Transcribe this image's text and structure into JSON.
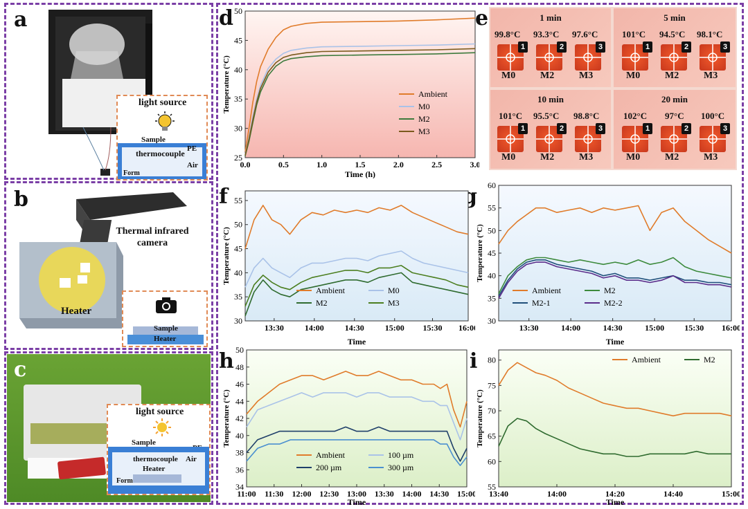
{
  "panels": {
    "a": {
      "label": "a",
      "inset": {
        "light": "light source",
        "sample": "Sample",
        "thermocouple": "thermocouple",
        "pe": "PE",
        "air": "Air",
        "form": "Form"
      }
    },
    "b": {
      "label": "b",
      "camera": "Thermal infrared camera",
      "heater": "Heater",
      "inset": {
        "sample": "Sample",
        "heater": "Heater"
      }
    },
    "c": {
      "label": "c",
      "inset": {
        "light": "light source",
        "sample": "Sample",
        "pe": "PE",
        "thermocouple": "thermocouple",
        "air": "Air",
        "heater": "Heater",
        "form": "Form"
      }
    },
    "d": {
      "label": "d"
    },
    "e": {
      "label": "e"
    },
    "f": {
      "label": "f"
    },
    "g": {
      "label": "g"
    },
    "h": {
      "label": "h"
    },
    "i": {
      "label": "i"
    }
  },
  "thermal": {
    "cells": [
      {
        "title": "1 min",
        "temps": [
          "99.8°C",
          "93.3°C",
          "97.6°C"
        ],
        "samples": [
          "M0",
          "M2",
          "M3"
        ]
      },
      {
        "title": "5 min",
        "temps": [
          "101°C",
          "94.5°C",
          "98.1°C"
        ],
        "samples": [
          "M0",
          "M2",
          "M3"
        ]
      },
      {
        "title": "10 min",
        "temps": [
          "101°C",
          "95.5°C",
          "98.8°C"
        ],
        "samples": [
          "M0",
          "M2",
          "M3"
        ]
      },
      {
        "title": "20 min",
        "temps": [
          "102°C",
          "97°C",
          "100°C"
        ],
        "samples": [
          "M0",
          "M2",
          "M3"
        ]
      }
    ],
    "markers": [
      "1",
      "2",
      "3"
    ]
  },
  "chart_data": [
    {
      "id": "d",
      "type": "line",
      "xlabel": "Time (h)",
      "ylabel": "Temperature (°C)",
      "xlim": [
        0,
        3
      ],
      "ylim": [
        25,
        50
      ],
      "xticks": [
        "0.0",
        "0.5",
        "1.0",
        "1.5",
        "2.0",
        "2.5",
        "3.0"
      ],
      "yticks": [
        "25",
        "30",
        "35",
        "40",
        "45",
        "50"
      ],
      "x": [
        0,
        0.05,
        0.1,
        0.15,
        0.2,
        0.3,
        0.4,
        0.5,
        0.6,
        0.8,
        1.0,
        1.5,
        2.0,
        2.5,
        3.0
      ],
      "series": [
        {
          "name": "Ambient",
          "color": "#e07b2a",
          "values": [
            26,
            30,
            34.5,
            38,
            40.5,
            43.5,
            45.5,
            46.8,
            47.4,
            47.9,
            48.1,
            48.2,
            48.3,
            48.5,
            48.8
          ]
        },
        {
          "name": "M0",
          "color": "#a9c2e8",
          "values": [
            25.5,
            28.5,
            32,
            35,
            37.3,
            40.2,
            41.8,
            42.8,
            43.3,
            43.7,
            43.9,
            44.0,
            44.1,
            44.2,
            44.4
          ]
        },
        {
          "name": "M2",
          "color": "#3c7a3c",
          "values": [
            25.3,
            27.8,
            31,
            34,
            36.2,
            39,
            40.6,
            41.5,
            41.9,
            42.2,
            42.4,
            42.5,
            42.6,
            42.7,
            42.9
          ]
        },
        {
          "name": "M3",
          "color": "#7a5a1c",
          "values": [
            25.4,
            28.2,
            31.5,
            34.5,
            36.8,
            39.6,
            41.2,
            42.1,
            42.5,
            42.9,
            43.1,
            43.2,
            43.3,
            43.4,
            43.6
          ]
        }
      ],
      "legend": "right"
    },
    {
      "id": "f",
      "type": "line",
      "xlabel": "Time",
      "ylabel": "Temperature (°C)",
      "xlim": [
        0,
        1
      ],
      "ylim": [
        30,
        57
      ],
      "xticks": [
        "13:30",
        "14:00",
        "14:30",
        "15:00",
        "15:30",
        "16:00"
      ],
      "xtickpos": [
        0.13,
        0.31,
        0.49,
        0.67,
        0.84,
        1.0
      ],
      "yticks": [
        "30",
        "35",
        "40",
        "45",
        "50",
        "55"
      ],
      "x": [
        0,
        0.04,
        0.08,
        0.12,
        0.16,
        0.2,
        0.25,
        0.3,
        0.35,
        0.4,
        0.45,
        0.5,
        0.55,
        0.6,
        0.65,
        0.7,
        0.75,
        0.8,
        0.85,
        0.9,
        0.95,
        1.0
      ],
      "series": [
        {
          "name": "Ambient",
          "color": "#e07b2a",
          "values": [
            45,
            51,
            54,
            51,
            50,
            48,
            51,
            52.5,
            52,
            53,
            52.5,
            53,
            52.5,
            53.5,
            53,
            54,
            52.5,
            51.5,
            50.5,
            49.5,
            48.5,
            48
          ]
        },
        {
          "name": "M0",
          "color": "#a9c2e8",
          "values": [
            37,
            41,
            43,
            41,
            40,
            39,
            41,
            42,
            42,
            42.5,
            43,
            43,
            42.5,
            43.5,
            44,
            44.5,
            43,
            42,
            41.5,
            41,
            40.5,
            40
          ]
        },
        {
          "name": "M2",
          "color": "#2f6b2f",
          "values": [
            31,
            36,
            38.5,
            36.5,
            35.5,
            35,
            36.5,
            37,
            37.5,
            38,
            38.5,
            38.5,
            38,
            39,
            39.5,
            40,
            38,
            37.5,
            37,
            36.5,
            36,
            35.5
          ]
        },
        {
          "name": "M3",
          "color": "#4b7e1f",
          "values": [
            33,
            37.5,
            39.5,
            38,
            37,
            36.5,
            38,
            39,
            39.5,
            40,
            40.5,
            40.5,
            40,
            41,
            41,
            41.5,
            40,
            39.5,
            39,
            38.5,
            37.5,
            37
          ]
        }
      ],
      "legend": "bottom"
    },
    {
      "id": "g",
      "type": "line",
      "xlabel": "Time",
      "ylabel": "Temperature (°C)",
      "xlim": [
        0,
        1
      ],
      "ylim": [
        30,
        60
      ],
      "xticks": [
        "13:30",
        "14:00",
        "14:30",
        "15:00",
        "15:30",
        "16:00"
      ],
      "xtickpos": [
        0.13,
        0.31,
        0.49,
        0.67,
        0.84,
        1.0
      ],
      "yticks": [
        "30",
        "35",
        "40",
        "45",
        "50",
        "55",
        "60"
      ],
      "x": [
        0,
        0.04,
        0.08,
        0.12,
        0.16,
        0.2,
        0.25,
        0.3,
        0.35,
        0.4,
        0.45,
        0.5,
        0.55,
        0.6,
        0.65,
        0.7,
        0.75,
        0.8,
        0.85,
        0.9,
        0.95,
        1.0
      ],
      "series": [
        {
          "name": "Ambient",
          "color": "#e07b2a",
          "values": [
            47,
            50,
            52,
            53.5,
            55,
            55,
            54,
            54.5,
            55,
            54,
            55,
            54.5,
            55,
            55.5,
            50,
            54,
            55,
            52,
            50,
            48,
            46.5,
            45
          ]
        },
        {
          "name": "M2",
          "color": "#3c8a3c",
          "values": [
            36,
            40,
            42,
            43.5,
            44,
            44,
            43.5,
            43,
            43.5,
            43,
            42.5,
            43,
            42.5,
            43.5,
            42.5,
            43,
            44,
            42,
            41,
            40.5,
            40,
            39.5
          ]
        },
        {
          "name": "M2-1",
          "color": "#1f4f7a",
          "values": [
            35.5,
            39,
            41.5,
            43,
            43.5,
            43.5,
            42.5,
            42,
            41.5,
            41,
            40,
            40.5,
            39.5,
            39.5,
            39,
            39.5,
            40,
            39,
            39,
            38.5,
            38.5,
            38
          ]
        },
        {
          "name": "M2-2",
          "color": "#5a2c8a",
          "values": [
            35,
            38.5,
            41,
            42.5,
            43,
            43,
            42,
            41.5,
            41,
            40.5,
            39.5,
            40,
            39,
            39,
            38.5,
            39,
            40,
            38.5,
            38.5,
            38,
            38,
            37.5
          ]
        }
      ],
      "legend": "bottom"
    },
    {
      "id": "h",
      "type": "line",
      "xlabel": "Time",
      "ylabel": "Temperature (°C)",
      "xlim": [
        0,
        1
      ],
      "ylim": [
        34,
        50
      ],
      "xticks": [
        "11:00",
        "11:30",
        "12:00",
        "12:30",
        "13:00",
        "13:30",
        "14:00",
        "14:30",
        "15:00"
      ],
      "xtickpos": [
        0,
        0.125,
        0.25,
        0.375,
        0.5,
        0.625,
        0.75,
        0.875,
        1.0
      ],
      "yticks": [
        "34",
        "36",
        "38",
        "40",
        "42",
        "44",
        "46",
        "48",
        "50"
      ],
      "x": [
        0,
        0.05,
        0.1,
        0.15,
        0.2,
        0.25,
        0.3,
        0.35,
        0.4,
        0.45,
        0.5,
        0.55,
        0.6,
        0.65,
        0.7,
        0.75,
        0.8,
        0.85,
        0.88,
        0.91,
        0.94,
        0.97,
        1.0
      ],
      "series": [
        {
          "name": "Ambient",
          "color": "#e07b2a",
          "values": [
            42.5,
            44,
            45,
            46,
            46.5,
            47,
            47,
            46.5,
            47,
            47.5,
            47,
            47,
            47.5,
            47,
            46.5,
            46.5,
            46,
            46,
            45.5,
            46,
            43,
            41,
            44
          ]
        },
        {
          "name": "100 µm",
          "color": "#a9c2e8",
          "values": [
            41,
            43,
            43.5,
            44,
            44.5,
            45,
            44.5,
            45,
            45,
            45,
            44.5,
            45,
            45,
            44.5,
            44.5,
            44.5,
            44,
            44,
            43.5,
            43.5,
            41.5,
            39.5,
            42
          ]
        },
        {
          "name": "200 µm",
          "color": "#1f3f6a",
          "values": [
            38,
            39.5,
            40,
            40.5,
            40.5,
            40.5,
            40.5,
            40.5,
            40.5,
            41,
            40.5,
            40.5,
            41,
            40.5,
            40.5,
            40.5,
            40.5,
            40.5,
            40.5,
            40.5,
            38.5,
            37,
            38.5
          ]
        },
        {
          "name": "300 µm",
          "color": "#4a8fd0",
          "values": [
            37,
            38.5,
            39,
            39,
            39.5,
            39.5,
            39.5,
            39.5,
            39.5,
            39.5,
            39.5,
            39.5,
            39.5,
            39.5,
            39.5,
            39.5,
            39.5,
            39.5,
            39,
            39,
            37.5,
            36.5,
            37.5
          ]
        }
      ],
      "legend": "bottom"
    },
    {
      "id": "i",
      "type": "line",
      "xlabel": "Time",
      "ylabel": "Temperature (°C)",
      "xlim": [
        0,
        1
      ],
      "ylim": [
        55,
        82
      ],
      "xticks": [
        "13:40",
        "14:00",
        "14:20",
        "14:40",
        "15:00"
      ],
      "xtickpos": [
        0,
        0.25,
        0.5,
        0.75,
        1.0
      ],
      "yticks": [
        "55",
        "60",
        "65",
        "70",
        "75",
        "80"
      ],
      "x": [
        0,
        0.04,
        0.08,
        0.12,
        0.16,
        0.2,
        0.25,
        0.3,
        0.35,
        0.4,
        0.45,
        0.5,
        0.55,
        0.6,
        0.65,
        0.7,
        0.75,
        0.8,
        0.85,
        0.9,
        0.95,
        1.0
      ],
      "series": [
        {
          "name": "Ambient",
          "color": "#e07b2a",
          "values": [
            75,
            78,
            79.5,
            78.5,
            77.5,
            77,
            76,
            74.5,
            73.5,
            72.5,
            71.5,
            71,
            70.5,
            70.5,
            70,
            69.5,
            69,
            69.5,
            69.5,
            69.5,
            69.5,
            69
          ]
        },
        {
          "name": "M2",
          "color": "#2f6b2f",
          "values": [
            63,
            67,
            68.5,
            68,
            66.5,
            65.5,
            64.5,
            63.5,
            62.5,
            62,
            61.5,
            61.5,
            61,
            61,
            61.5,
            61.5,
            61.5,
            61.5,
            62,
            61.5,
            61.5,
            61.5
          ]
        }
      ],
      "legend": "top-right"
    }
  ]
}
